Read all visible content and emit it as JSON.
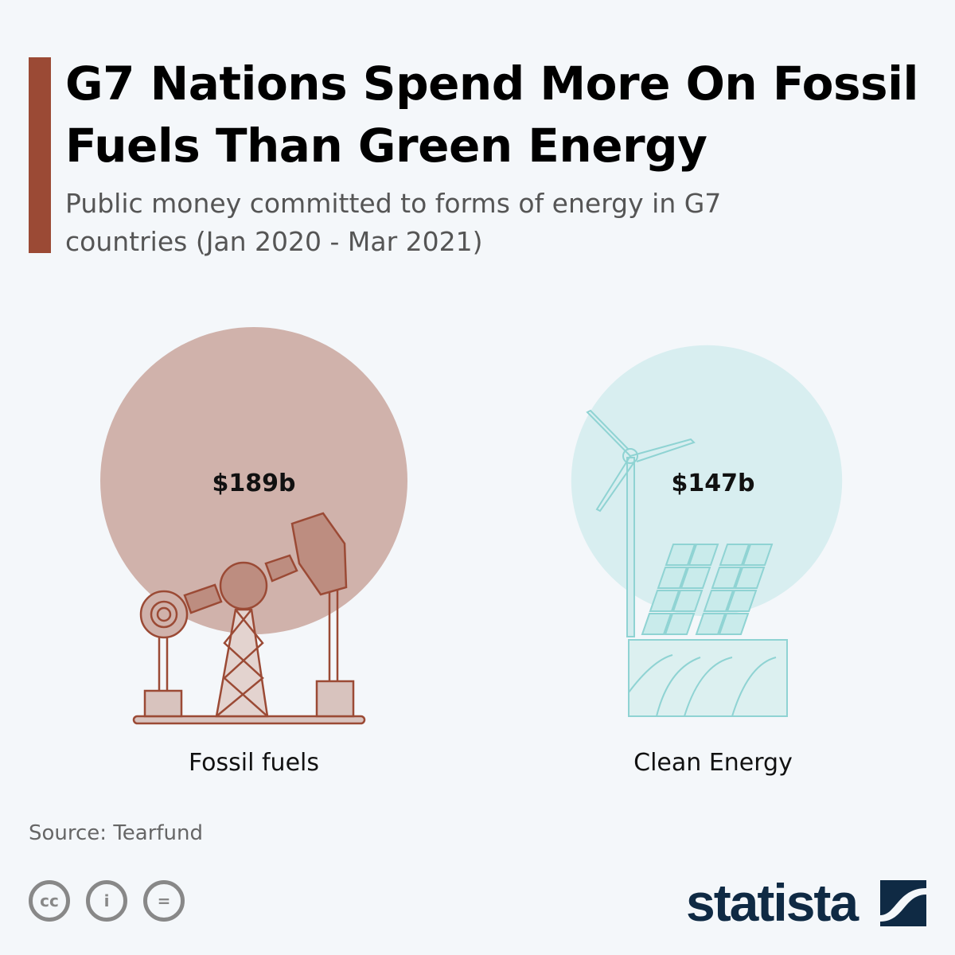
{
  "header": {
    "title": "G7 Nations Spend More On Fossil Fuels Than Green Energy",
    "subtitle": "Public money committed to forms of energy in G7 countries (Jan 2020 - Mar 2021)"
  },
  "chart_data": {
    "type": "bubble",
    "title": "G7 Nations Spend More On Fossil Fuels Than Green Energy",
    "subtitle": "Public money committed to forms of energy in G7 countries (Jan 2020 - Mar 2021)",
    "categories": [
      "Fossil fuels",
      "Clean Energy"
    ],
    "values": [
      189,
      147
    ],
    "unit": "billion USD",
    "data_labels": [
      "$189b",
      "$147b"
    ],
    "colors": [
      "#9b4a35",
      "#8fd3d3"
    ],
    "icons": [
      "oil-pump-jack-icon",
      "wind-turbine-solar-hydro-icon"
    ]
  },
  "footer": {
    "source": "Source: Tearfund",
    "brand": "statista",
    "license_icons": [
      "cc-icon",
      "attribution-icon",
      "no-derivatives-icon"
    ]
  }
}
